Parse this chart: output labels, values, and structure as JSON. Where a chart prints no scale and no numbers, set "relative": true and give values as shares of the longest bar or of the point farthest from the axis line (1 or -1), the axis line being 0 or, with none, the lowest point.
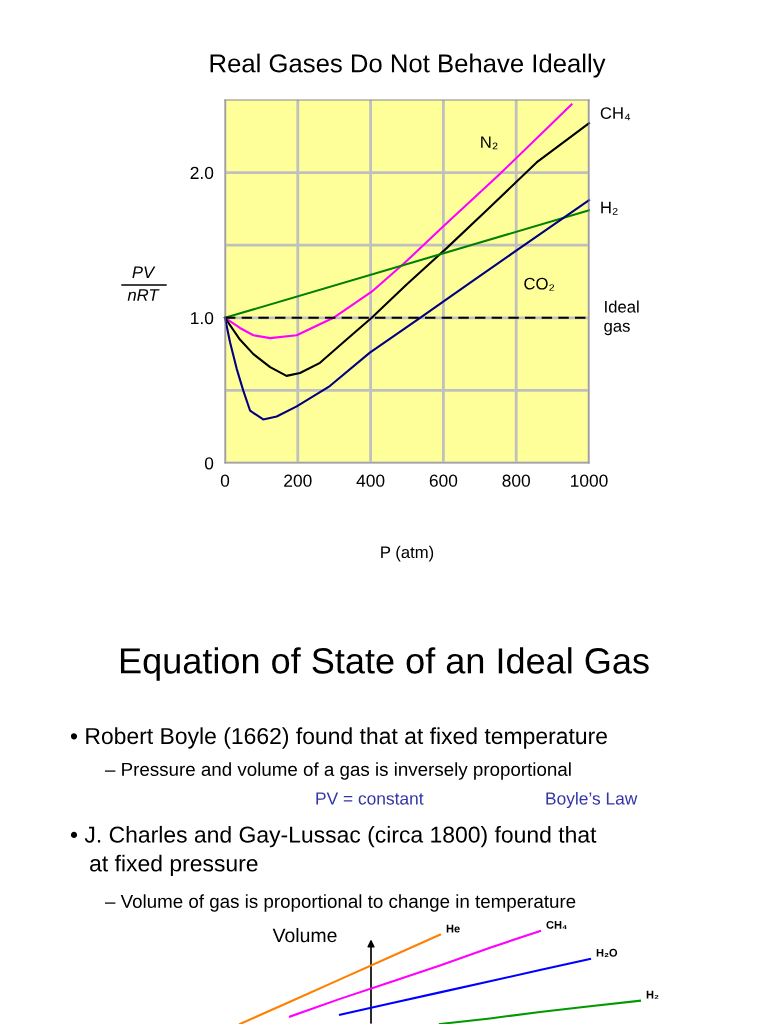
{
  "chart_data": [
    {
      "type": "line",
      "title": "Real Gases Do Not Behave Ideally",
      "xlabel": "P (atm)",
      "ylabel": "PV\nnRT",
      "xlim": [
        0,
        1000
      ],
      "xticks": [
        0,
        200,
        400,
        600,
        800,
        1000
      ],
      "ylim": [
        0,
        2.5
      ],
      "yticks": [
        0,
        {
          "value": 0.5,
          "label": null
        },
        {
          "value": 1.0,
          "label": "1.0"
        },
        {
          "value": 1.5,
          "label": null
        },
        {
          "value": 2.0,
          "label": "2.0"
        }
      ],
      "grid": true,
      "legend": false,
      "marker": "none",
      "series": [
        {
          "name": "N₂",
          "color": "#ff00ff",
          "x": [
            0,
            41,
            78,
            124,
            197,
            298,
            403,
            490,
            600,
            755,
            952
          ],
          "values": [
            1.0,
            0.93,
            0.88,
            0.86,
            0.88,
            1.0,
            1.18,
            1.37,
            1.63,
            1.99,
            2.47
          ]
        },
        {
          "name": "CH₄",
          "color": "#000000",
          "x": [
            0,
            41,
            78,
            124,
            169,
            206,
            261,
            334,
            403,
            499,
            609,
            719,
            856,
            1000
          ],
          "values": [
            1.0,
            0.85,
            0.75,
            0.66,
            0.6,
            0.62,
            0.69,
            0.85,
            1.0,
            1.23,
            1.48,
            1.74,
            2.07,
            2.34
          ]
        },
        {
          "name": "H₂",
          "color": "#008000",
          "x": [
            0,
            1000
          ],
          "values": [
            1.0,
            1.74
          ]
        },
        {
          "name": "CO₂",
          "color": "#000080",
          "x": [
            0,
            14,
            32,
            50,
            69,
            105,
            142,
            197,
            288,
            398,
            536,
            673,
            810,
            1000
          ],
          "values": [
            1.0,
            0.83,
            0.65,
            0.5,
            0.36,
            0.3,
            0.32,
            0.39,
            0.53,
            0.76,
            1.0,
            1.24,
            1.48,
            1.81
          ]
        },
        {
          "name": "Ideal\ngas",
          "color": "#000000",
          "line_style": "dashed",
          "x": [
            0,
            1000
          ],
          "values": [
            1.0,
            1.0
          ]
        }
      ]
    },
    {
      "type": "line",
      "title": "Equation of State of an Ideal Gas",
      "ylabel": "Volume",
      "relative": true,
      "legend": false,
      "grid": false,
      "marker": "none",
      "categories": [
        null,
        null,
        null,
        null,
        null,
        null,
        null,
        null,
        null
      ],
      "series": [
        {
          "name": "He",
          "color": "#ff8000",
          "values": [
            0,
            0.24,
            0.48,
            0.72,
            0.96,
            null,
            null,
            null,
            null
          ]
        },
        {
          "name": "CH₄",
          "color": "#ff00ff",
          "values": [
            null,
            0.08,
            0.27,
            0.45,
            0.63,
            0.82,
            1.0,
            null,
            null
          ]
        },
        {
          "name": "H₂O",
          "color": "#0000ff",
          "values": [
            null,
            null,
            0.1,
            0.22,
            0.34,
            0.46,
            0.58,
            0.7,
            null
          ]
        },
        {
          "name": "H₂",
          "color": "#009900",
          "values": [
            null,
            null,
            null,
            null,
            0,
            0.06,
            0.13,
            0.19,
            0.25
          ]
        }
      ],
      "annotations": [
        "• Robert Boyle (1662) found that at fixed temperature",
        "– Pressure and volume of a gas is inversely proportional",
        "PV = constant",
        "Boyle’s Law",
        "• J. Charles and Gay-Lussac (circa 1800) found that\n   at fixed pressure",
        "– Volume of gas is proportional to change in temperature"
      ]
    }
  ]
}
